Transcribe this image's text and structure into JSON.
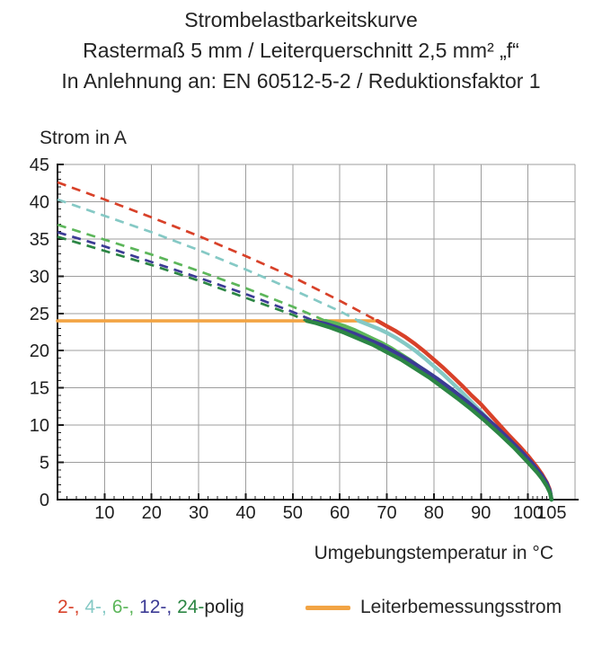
{
  "title": {
    "line1": "Strombelastbarkeitskurve",
    "line2": "Rastermaß 5 mm / Leiterquerschnitt 2,5 mm² „f“",
    "line3": "In Anlehnung an: EN 60512-5-2 / Reduktionsfaktor 1"
  },
  "chart_data": {
    "type": "line",
    "title": "Strombelastbarkeitskurve",
    "xlabel": "Umgebungstemperatur in °C",
    "ylabel": "Strom in A",
    "x_range": [
      0,
      110
    ],
    "y_range": [
      0,
      45
    ],
    "x_major_ticks": [
      10,
      20,
      30,
      40,
      50,
      60,
      70,
      80,
      90,
      100,
      105
    ],
    "y_major_ticks": [
      0,
      5,
      10,
      15,
      20,
      25,
      30,
      35,
      40,
      45
    ],
    "x_grid": [
      10,
      20,
      30,
      40,
      50,
      60,
      70,
      80,
      90,
      100,
      110
    ],
    "y_grid": [
      5,
      10,
      15,
      20,
      25,
      30,
      35,
      40,
      45
    ],
    "x_minor_step": 2,
    "y_minor_step": 1,
    "grid_on": true,
    "grid_color": "#9d9d9d",
    "axis_color": "#1a1a1a",
    "max_temperature": 105,
    "rated_line": {
      "label": "Leiterbemessungsstrom",
      "current": 24,
      "t_start": 0,
      "t_end": 68,
      "color": "#F2A444"
    },
    "series": [
      {
        "name": "2-polig",
        "color": "#D84129",
        "knee": [
          68,
          24
        ],
        "dashed_points": [
          [
            0,
            42.6
          ],
          [
            10,
            40.3
          ],
          [
            20,
            37.9
          ],
          [
            30,
            35.4
          ],
          [
            40,
            32.7
          ],
          [
            50,
            29.9
          ],
          [
            60,
            26.7
          ],
          [
            68,
            24
          ]
        ],
        "solid_points": [
          [
            68,
            24
          ],
          [
            70,
            23.3
          ],
          [
            72,
            22.6
          ],
          [
            74,
            21.8
          ],
          [
            76,
            20.9
          ],
          [
            78,
            19.9
          ],
          [
            80,
            18.8
          ],
          [
            82,
            17.7
          ],
          [
            84,
            16.5
          ],
          [
            86,
            15.3
          ],
          [
            88,
            14
          ],
          [
            90,
            12.8
          ],
          [
            92,
            11.4
          ],
          [
            94,
            10
          ],
          [
            96,
            8.6
          ],
          [
            98,
            7.3
          ],
          [
            100,
            5.9
          ],
          [
            101,
            5.1
          ],
          [
            102,
            4.3
          ],
          [
            103,
            3.4
          ],
          [
            104,
            2.3
          ],
          [
            104.6,
            1.4
          ],
          [
            105,
            0
          ]
        ]
      },
      {
        "name": "4-polig",
        "color": "#85C9C5",
        "knee": [
          64,
          24
        ],
        "dashed_points": [
          [
            0,
            40.3
          ],
          [
            10,
            38.1
          ],
          [
            20,
            35.9
          ],
          [
            30,
            33.5
          ],
          [
            40,
            30.9
          ],
          [
            50,
            28.2
          ],
          [
            60,
            25.3
          ],
          [
            64,
            24
          ]
        ],
        "solid_points": [
          [
            64,
            24
          ],
          [
            66,
            23.5
          ],
          [
            68,
            23
          ],
          [
            70,
            22.4
          ],
          [
            72,
            21.7
          ],
          [
            74,
            20.9
          ],
          [
            76,
            20
          ],
          [
            78,
            19
          ],
          [
            80,
            17.9
          ],
          [
            82,
            16.8
          ],
          [
            84,
            15.6
          ],
          [
            86,
            14.4
          ],
          [
            88,
            13.1
          ],
          [
            90,
            11.8
          ],
          [
            92,
            10.5
          ],
          [
            94,
            9.2
          ],
          [
            96,
            7.9
          ],
          [
            98,
            6.6
          ],
          [
            100,
            5.3
          ],
          [
            102,
            3.8
          ],
          [
            103,
            3
          ],
          [
            104,
            2
          ],
          [
            104.6,
            1.2
          ],
          [
            105,
            0
          ]
        ]
      },
      {
        "name": "6-polig",
        "color": "#5CB65A",
        "knee": [
          57,
          24
        ],
        "dashed_points": [
          [
            0,
            36.9
          ],
          [
            10,
            34.9
          ],
          [
            20,
            32.9
          ],
          [
            30,
            30.7
          ],
          [
            40,
            28.4
          ],
          [
            50,
            25.9
          ],
          [
            57,
            24
          ]
        ],
        "solid_points": [
          [
            57,
            24
          ],
          [
            59,
            23.7
          ],
          [
            61,
            23.3
          ],
          [
            63,
            22.8
          ],
          [
            65,
            22.2
          ],
          [
            67,
            21.6
          ],
          [
            69,
            21
          ],
          [
            71,
            20.3
          ],
          [
            73,
            19.5
          ],
          [
            75,
            18.7
          ],
          [
            77,
            17.8
          ],
          [
            79,
            16.9
          ],
          [
            81,
            15.9
          ],
          [
            83,
            14.9
          ],
          [
            85,
            13.9
          ],
          [
            87,
            12.8
          ],
          [
            89,
            11.7
          ],
          [
            91,
            10.6
          ],
          [
            93,
            9.5
          ],
          [
            95,
            8.3
          ],
          [
            97,
            7.1
          ],
          [
            99,
            5.9
          ],
          [
            101,
            4.6
          ],
          [
            103,
            3.1
          ],
          [
            104,
            2.1
          ],
          [
            104.7,
            1
          ],
          [
            105,
            0
          ]
        ]
      },
      {
        "name": "12-polig",
        "color": "#3C3B95",
        "knee": [
          54.5,
          24
        ],
        "dashed_points": [
          [
            0,
            35.9
          ],
          [
            10,
            34
          ],
          [
            20,
            31.9
          ],
          [
            30,
            29.8
          ],
          [
            40,
            27.6
          ],
          [
            50,
            25.2
          ],
          [
            54.5,
            24
          ]
        ],
        "solid_points": [
          [
            54.5,
            24
          ],
          [
            57,
            23.6
          ],
          [
            60,
            23
          ],
          [
            63,
            22.3
          ],
          [
            66,
            21.5
          ],
          [
            69,
            20.7
          ],
          [
            72,
            19.7
          ],
          [
            75,
            18.6
          ],
          [
            78,
            17.4
          ],
          [
            81,
            16.1
          ],
          [
            84,
            14.7
          ],
          [
            87,
            13.2
          ],
          [
            90,
            11.6
          ],
          [
            93,
            9.9
          ],
          [
            96,
            8.1
          ],
          [
            99,
            6.2
          ],
          [
            101,
            4.8
          ],
          [
            103,
            3.2
          ],
          [
            104,
            2.2
          ],
          [
            104.7,
            1.1
          ],
          [
            105,
            0
          ]
        ]
      },
      {
        "name": "24-polig",
        "color": "#2C8644",
        "knee": [
          53,
          24
        ],
        "dashed_points": [
          [
            0,
            35.3
          ],
          [
            10,
            33.4
          ],
          [
            20,
            31.5
          ],
          [
            30,
            29.4
          ],
          [
            40,
            27.1
          ],
          [
            50,
            24.8
          ],
          [
            53,
            24
          ]
        ],
        "solid_points": [
          [
            53,
            24
          ],
          [
            55,
            23.7
          ],
          [
            58,
            23.1
          ],
          [
            61,
            22.4
          ],
          [
            64,
            21.6
          ],
          [
            67,
            20.8
          ],
          [
            70,
            19.8
          ],
          [
            73,
            18.8
          ],
          [
            76,
            17.6
          ],
          [
            79,
            16.4
          ],
          [
            82,
            15
          ],
          [
            85,
            13.6
          ],
          [
            88,
            12.1
          ],
          [
            91,
            10.5
          ],
          [
            94,
            8.8
          ],
          [
            97,
            7
          ],
          [
            100,
            5
          ],
          [
            102,
            3.6
          ],
          [
            103,
            2.8
          ],
          [
            104,
            1.8
          ],
          [
            104.7,
            0.9
          ],
          [
            105,
            0
          ]
        ]
      }
    ],
    "legend_position": "bottom"
  },
  "legend": {
    "series_segments": [
      {
        "text": "2-, ",
        "color": "#D84129"
      },
      {
        "text": "4-, ",
        "color": "#85C9C5"
      },
      {
        "text": "6-, ",
        "color": "#5CB65A"
      },
      {
        "text": "12-, ",
        "color": "#3C3B95"
      },
      {
        "text": "24-",
        "color": "#2C8644"
      },
      {
        "text": "polig",
        "color": "#242424"
      }
    ]
  }
}
